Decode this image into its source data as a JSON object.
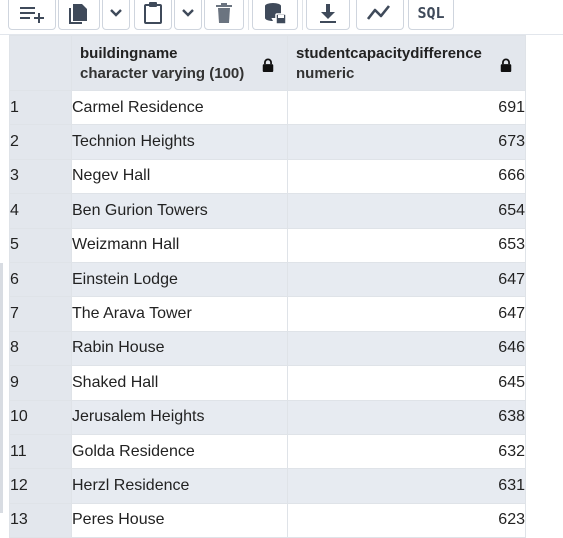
{
  "toolbar": {
    "buttons": [
      {
        "name": "add-row-icon"
      },
      {
        "name": "copy-icon"
      },
      {
        "name": "chevron-down-icon"
      },
      {
        "name": "paste-icon"
      },
      {
        "name": "chevron-down-icon"
      },
      {
        "name": "delete-icon"
      },
      {
        "name": "save-data-icon"
      },
      {
        "name": "download-icon"
      },
      {
        "name": "graph-visualiser-icon"
      }
    ],
    "sql_label": "SQL"
  },
  "columns": [
    {
      "name": "buildingname",
      "type": "character varying (100)"
    },
    {
      "name": "studentcapacitydifference",
      "type": "numeric"
    }
  ],
  "rows": [
    {
      "num": "1",
      "building": "Carmel Residence",
      "value": "691"
    },
    {
      "num": "2",
      "building": "Technion Heights",
      "value": "673"
    },
    {
      "num": "3",
      "building": "Negev Hall",
      "value": "666"
    },
    {
      "num": "4",
      "building": "Ben Gurion Towers",
      "value": "654"
    },
    {
      "num": "5",
      "building": "Weizmann Hall",
      "value": "653"
    },
    {
      "num": "6",
      "building": "Einstein Lodge",
      "value": "647"
    },
    {
      "num": "7",
      "building": "The Arava Tower",
      "value": "647"
    },
    {
      "num": "8",
      "building": "Rabin House",
      "value": "646"
    },
    {
      "num": "9",
      "building": "Shaked Hall",
      "value": "645"
    },
    {
      "num": "10",
      "building": "Jerusalem Heights",
      "value": "638"
    },
    {
      "num": "11",
      "building": "Golda Residence",
      "value": "632"
    },
    {
      "num": "12",
      "building": "Herzl Residence",
      "value": "631"
    },
    {
      "num": "13",
      "building": "Peres House",
      "value": "623"
    }
  ]
}
